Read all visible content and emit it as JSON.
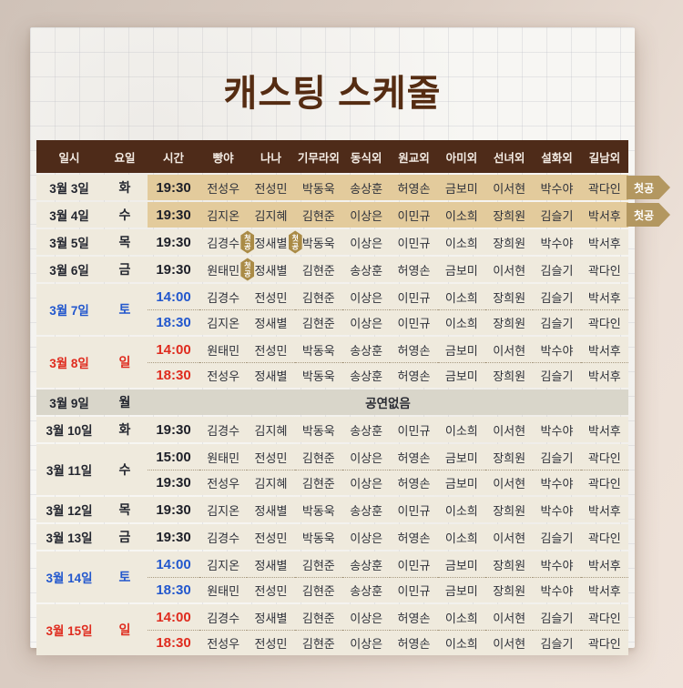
{
  "title": "캐스팅 스케줄",
  "legend": {
    "first_show_label": "첫공",
    "no_show_label": "공연없음"
  },
  "colors": {
    "header_brown": "#4e2b19",
    "title_brown": "#552c12",
    "row_beige": "#efeadd",
    "highlight_tan": "#e3cb9c",
    "no_show_gray": "#d9d6ca",
    "ribbon_gold": "#b39760",
    "badge_gold": "#aa8b46",
    "saturday_blue": "#2257cd",
    "sunday_red": "#df2b1e"
  },
  "table": {
    "headers": [
      "일시",
      "요일",
      "시간",
      "빵야",
      "나나",
      "기무라외",
      "동식외",
      "원교외",
      "아미외",
      "선녀외",
      "설화외",
      "길남외"
    ],
    "groups": [
      {
        "date": "3월 3일",
        "day": "화",
        "day_type": "weekday",
        "rows": [
          {
            "time": "19:30",
            "highlight": true,
            "ribbon": "첫공",
            "cast": [
              "전성우",
              "전성민",
              "박동욱",
              "송상훈",
              "허영손",
              "금보미",
              "이서현",
              "박수야",
              "곽다인"
            ]
          }
        ]
      },
      {
        "date": "3월 4일",
        "day": "수",
        "day_type": "weekday",
        "rows": [
          {
            "time": "19:30",
            "highlight": true,
            "ribbon": "첫공",
            "cast": [
              "김지온",
              "김지혜",
              "김현준",
              "이상은",
              "이민규",
              "이소희",
              "장희원",
              "김슬기",
              "박서후"
            ]
          }
        ]
      },
      {
        "date": "3월 5일",
        "day": "목",
        "day_type": "weekday",
        "rows": [
          {
            "time": "19:30",
            "cast": [
              {
                "name": "김경수",
                "badge": "첫공"
              },
              {
                "name": "정새별",
                "badge": "첫공"
              },
              "박동욱",
              "이상은",
              "이민규",
              "이소희",
              "장희원",
              "박수야",
              "박서후"
            ]
          }
        ]
      },
      {
        "date": "3월 6일",
        "day": "금",
        "day_type": "weekday",
        "rows": [
          {
            "time": "19:30",
            "cast": [
              {
                "name": "원태민",
                "badge": "첫공"
              },
              "정새별",
              "김현준",
              "송상훈",
              "허영손",
              "금보미",
              "이서현",
              "김슬기",
              "곽다인"
            ]
          }
        ]
      },
      {
        "date": "3월 7일",
        "day": "토",
        "day_type": "saturday",
        "rows": [
          {
            "time": "14:00",
            "cast": [
              "김경수",
              "전성민",
              "김현준",
              "이상은",
              "이민규",
              "이소희",
              "장희원",
              "김슬기",
              "박서후"
            ]
          },
          {
            "time": "18:30",
            "cast": [
              "김지온",
              "정새별",
              "김현준",
              "이상은",
              "이민규",
              "이소희",
              "장희원",
              "김슬기",
              "곽다인"
            ]
          }
        ]
      },
      {
        "date": "3월 8일",
        "day": "일",
        "day_type": "sunday",
        "rows": [
          {
            "time": "14:00",
            "cast": [
              "원태민",
              "전성민",
              "박동욱",
              "송상훈",
              "허영손",
              "금보미",
              "이서현",
              "박수야",
              "박서후"
            ]
          },
          {
            "time": "18:30",
            "cast": [
              "전성우",
              "정새별",
              "박동욱",
              "송상훈",
              "허영손",
              "금보미",
              "장희원",
              "김슬기",
              "박서후"
            ]
          }
        ]
      },
      {
        "date": "3월 9일",
        "day": "월",
        "day_type": "weekday",
        "no_show": "공연없음"
      },
      {
        "date": "3월 10일",
        "day": "화",
        "day_type": "weekday",
        "rows": [
          {
            "time": "19:30",
            "cast": [
              "김경수",
              "김지혜",
              "박동욱",
              "송상훈",
              "이민규",
              "이소희",
              "이서현",
              "박수야",
              "박서후"
            ]
          }
        ]
      },
      {
        "date": "3월 11일",
        "day": "수",
        "day_type": "weekday",
        "rows": [
          {
            "time": "15:00",
            "cast": [
              "원태민",
              "전성민",
              "김현준",
              "이상은",
              "허영손",
              "금보미",
              "장희원",
              "김슬기",
              "곽다인"
            ]
          },
          {
            "time": "19:30",
            "cast": [
              "전성우",
              "김지혜",
              "김현준",
              "이상은",
              "허영손",
              "금보미",
              "이서현",
              "박수야",
              "곽다인"
            ]
          }
        ]
      },
      {
        "date": "3월 12일",
        "day": "목",
        "day_type": "weekday",
        "rows": [
          {
            "time": "19:30",
            "cast": [
              "김지온",
              "정새별",
              "박동욱",
              "송상훈",
              "이민규",
              "이소희",
              "장희원",
              "박수야",
              "박서후"
            ]
          }
        ]
      },
      {
        "date": "3월 13일",
        "day": "금",
        "day_type": "weekday",
        "rows": [
          {
            "time": "19:30",
            "cast": [
              "김경수",
              "전성민",
              "박동욱",
              "이상은",
              "허영손",
              "이소희",
              "이서현",
              "김슬기",
              "곽다인"
            ]
          }
        ]
      },
      {
        "date": "3월 14일",
        "day": "토",
        "day_type": "saturday",
        "rows": [
          {
            "time": "14:00",
            "cast": [
              "김지온",
              "정새별",
              "김현준",
              "송상훈",
              "이민규",
              "금보미",
              "장희원",
              "박수야",
              "박서후"
            ]
          },
          {
            "time": "18:30",
            "cast": [
              "원태민",
              "전성민",
              "김현준",
              "송상훈",
              "이민규",
              "금보미",
              "장희원",
              "박수야",
              "박서후"
            ]
          }
        ]
      },
      {
        "date": "3월 15일",
        "day": "일",
        "day_type": "sunday",
        "rows": [
          {
            "time": "14:00",
            "cast": [
              "김경수",
              "정새별",
              "김현준",
              "이상은",
              "허영손",
              "이소희",
              "이서현",
              "김슬기",
              "곽다인"
            ]
          },
          {
            "time": "18:30",
            "cast": [
              "전성우",
              "전성민",
              "김현준",
              "이상은",
              "허영손",
              "이소희",
              "이서현",
              "김슬기",
              "곽다인"
            ]
          }
        ]
      }
    ]
  }
}
